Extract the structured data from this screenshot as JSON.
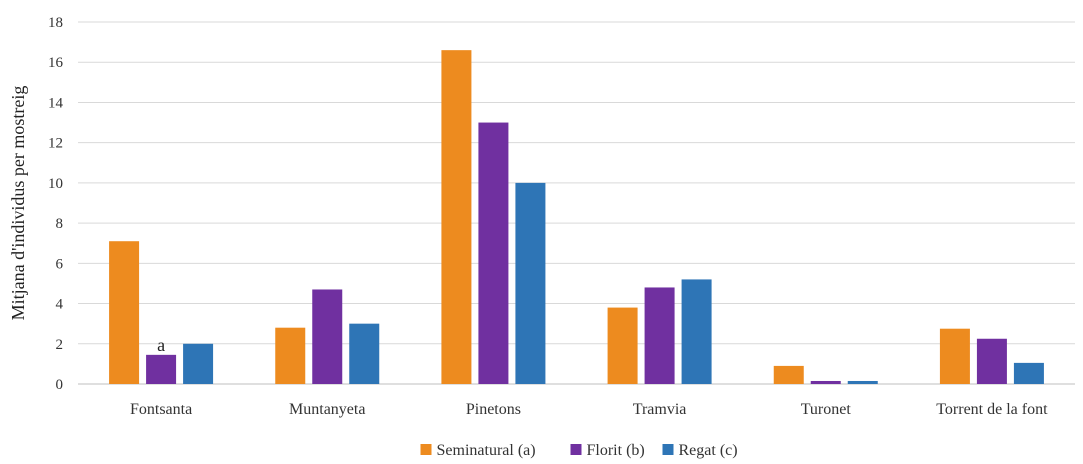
{
  "chart_data": {
    "type": "bar",
    "title": "",
    "xlabel": "",
    "ylabel": "Mitjana d'individus per mostreig",
    "ylim": [
      0,
      18
    ],
    "yticks": [
      0,
      2,
      4,
      6,
      8,
      10,
      12,
      14,
      16,
      18
    ],
    "grid": true,
    "legend_position": "bottom",
    "categories": [
      "Fontsanta",
      "Muntanyeta",
      "Pinetons",
      "Tramvia",
      "Turonet",
      "Torrent de la font"
    ],
    "series": [
      {
        "name": "Seminatural (a)",
        "color": "#ED8B1F",
        "values": [
          7.1,
          2.8,
          16.6,
          3.8,
          0.9,
          2.75
        ]
      },
      {
        "name": "Florit (b)",
        "color": "#7030A0",
        "values": [
          1.45,
          4.7,
          13.0,
          4.8,
          0.15,
          2.25
        ]
      },
      {
        "name": "Regat (c)",
        "color": "#2E75B6",
        "values": [
          2.0,
          3.0,
          10.0,
          5.2,
          0.15,
          1.05
        ]
      }
    ],
    "annotations": [
      {
        "text": "a",
        "category": "Fontsanta",
        "series": "Florit (b)"
      }
    ]
  }
}
